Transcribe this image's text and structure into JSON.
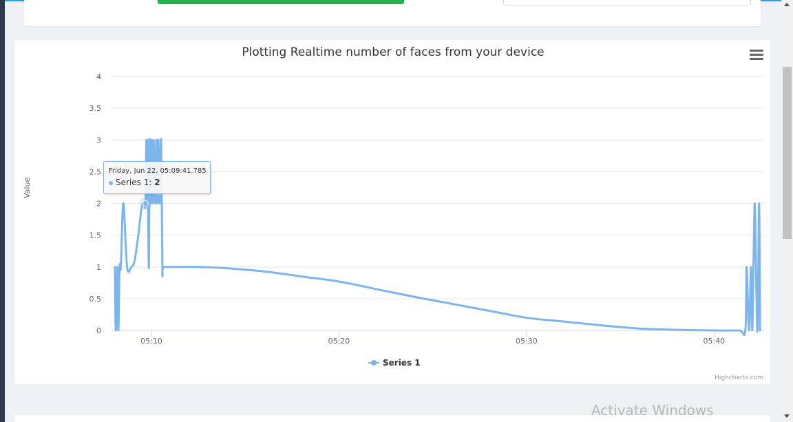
{
  "watermark": "Activate Windows",
  "chart_data": {
    "type": "line",
    "title": "Plotting Realtime number of faces from your device",
    "xlabel": "",
    "ylabel": "Value",
    "ylim": [
      0,
      4
    ],
    "yticks": [
      0,
      0.5,
      1,
      1.5,
      2,
      2.5,
      3,
      3.5,
      4
    ],
    "ytick_labels": [
      "0",
      "0.5",
      "1",
      "1.5",
      "2",
      "2.5",
      "3",
      "3.5",
      "4"
    ],
    "x_axis_type": "datetime",
    "xlim": [
      "05:07:50",
      "05:42:40"
    ],
    "xticks": [
      "05:10",
      "05:20",
      "05:30",
      "05:40"
    ],
    "grid": true,
    "legend": "bottom-center",
    "credits": "Highcharts.com",
    "series": [
      {
        "name": "Series 1",
        "color": "#7cb5ec",
        "x": [
          "05:08:03",
          "05:08:06",
          "05:08:11",
          "05:08:14",
          "05:08:18",
          "05:08:22",
          "05:08:30",
          "05:08:42",
          "05:08:56",
          "05:09:06",
          "05:09:18",
          "05:09:26",
          "05:09:30",
          "05:09:32",
          "05:09:34",
          "05:09:38",
          "05:09:41",
          "05:09:44",
          "05:09:46",
          "05:09:47",
          "05:09:49",
          "05:09:52",
          "05:09:54",
          "05:09:57",
          "05:10:00",
          "05:10:04",
          "05:10:07",
          "05:10:12",
          "05:10:16",
          "05:10:19",
          "05:10:22",
          "05:10:26",
          "05:10:31",
          "05:10:35",
          "05:10:40",
          "05:11:30",
          "05:12:30",
          "05:14:00",
          "05:16:00",
          "05:18:00",
          "05:20:00",
          "05:22:00",
          "05:24:00",
          "05:26:00",
          "05:28:00",
          "05:30:00",
          "05:32:00",
          "05:34:00",
          "05:36:00",
          "05:38:00",
          "05:40:00",
          "05:41:20",
          "05:41:40",
          "05:41:44",
          "05:41:52",
          "05:41:58",
          "05:42:02",
          "05:42:06",
          "05:42:10",
          "05:42:14",
          "05:42:19",
          "05:42:24",
          "05:42:27"
        ],
        "y": [
          1,
          0,
          1,
          0,
          1,
          1,
          2,
          1,
          1,
          1.1,
          1.5,
          1.85,
          1.95,
          2,
          2,
          2,
          2,
          3,
          2,
          3,
          2,
          1,
          3,
          2,
          3,
          2,
          3,
          2,
          3,
          2,
          3,
          2,
          3,
          1,
          1,
          1,
          1,
          0.98,
          0.93,
          0.85,
          0.77,
          0.65,
          0.53,
          0.42,
          0.31,
          0.2,
          0.14,
          0.08,
          0.03,
          0.01,
          0,
          0,
          0,
          1,
          0,
          1,
          0,
          1,
          2,
          1,
          0,
          2,
          0
        ]
      }
    ],
    "tooltip": {
      "date": "Friday, Jun 22, 05:09:41.785",
      "series": "Series 1",
      "value": "2"
    }
  }
}
